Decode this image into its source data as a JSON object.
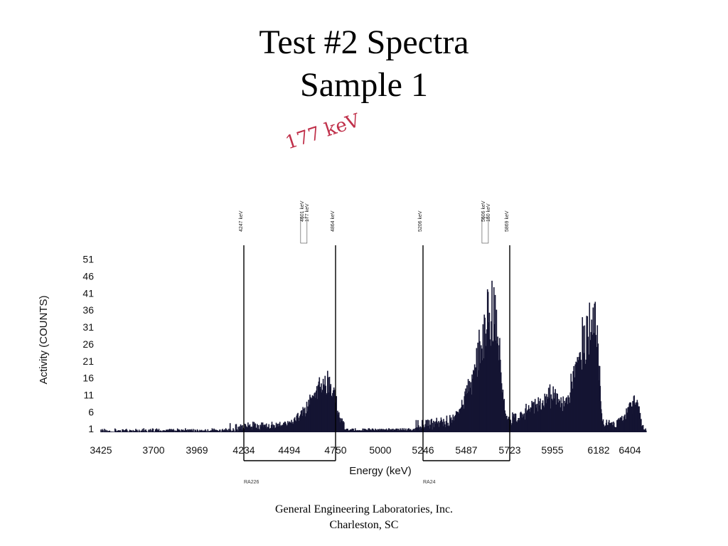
{
  "title": {
    "line1": "Test #2 Spectra",
    "line2": "Sample 1"
  },
  "footer": {
    "line1": "General Engineering Laboratories, Inc.",
    "line2": "Charleston, SC"
  },
  "handwritten_note": "177 keV",
  "colors": {
    "bars": "#141433",
    "axis": "#000000",
    "handwriting": "#c0304a"
  },
  "chart_data": {
    "type": "bar",
    "xlabel": "Energy (keV)",
    "ylabel": "Activity (COUNTS)",
    "x_ticks": [
      "3425",
      "3700",
      "3969",
      "4234",
      "4494",
      "4750",
      "5000",
      "5246",
      "5487",
      "5723",
      "5955",
      "6182",
      "6404"
    ],
    "y_ticks": [
      1,
      6,
      11,
      16,
      21,
      26,
      31,
      36,
      41,
      46,
      51
    ],
    "xlim": [
      3425,
      6520
    ],
    "ylim": [
      0,
      53
    ],
    "grid": false,
    "regions": [
      {
        "start_keV": 4234,
        "end_keV": 4750,
        "label": "RA226"
      },
      {
        "start_keV": 5246,
        "end_keV": 5723,
        "label": "RA24"
      }
    ],
    "peak_annotations": [
      {
        "energy_keV": 4234,
        "text": "4247 keV"
      },
      {
        "energy_keV": 4580,
        "text": "4601 keV / 177 keV"
      },
      {
        "energy_keV": 4750,
        "text": "4864 keV"
      },
      {
        "energy_keV": 5246,
        "text": "5206 keV"
      },
      {
        "energy_keV": 5595,
        "text": "5606 keV / 150 keV"
      },
      {
        "energy_keV": 5723,
        "text": "5869 keV"
      }
    ],
    "peaks": [
      {
        "center_keV": 4720,
        "height": 16
      },
      {
        "center_keV": 5640,
        "height": 41
      },
      {
        "center_keV": 6160,
        "height": 39
      },
      {
        "center_keV": 5955,
        "height": 10
      },
      {
        "center_keV": 6450,
        "height": 9
      }
    ]
  }
}
